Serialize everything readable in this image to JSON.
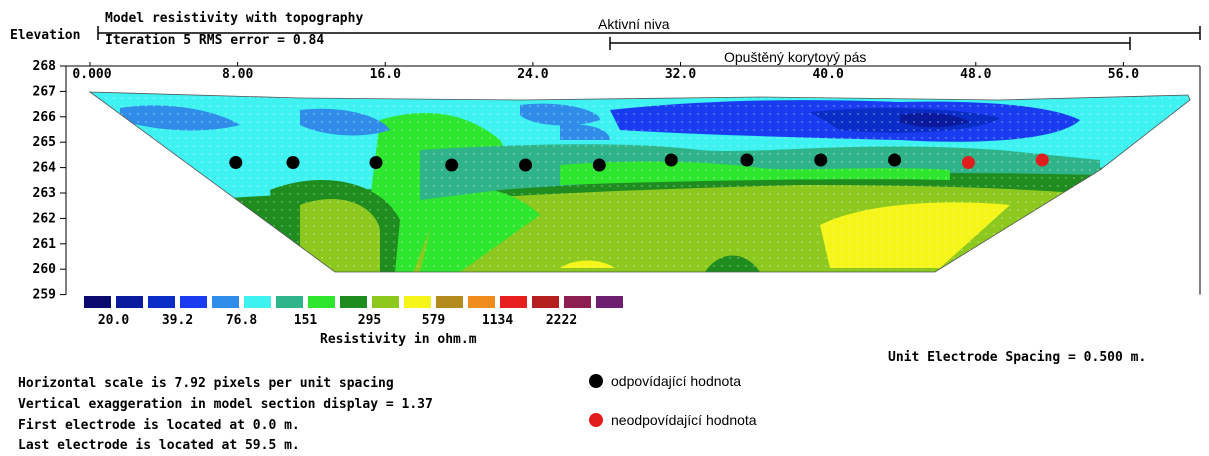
{
  "header": {
    "title": "Model resistivity with topography",
    "iteration": "Iteration 5 RMS error = 0.84",
    "elevation_label": "Elevation"
  },
  "annotations": {
    "aktivni_niva": "Aktivní niva",
    "opusteny_pas": "Opuštěný korytový pás"
  },
  "colors": {
    "scale": [
      "#0a0a6e",
      "#0a1a9c",
      "#0a2dc8",
      "#1a3cf0",
      "#2f8ce8",
      "#3df2f0",
      "#2fb48a",
      "#2ee62e",
      "#1e8c1e",
      "#8cc81e",
      "#f5f51a",
      "#b48c1e",
      "#f08c1e",
      "#e61e1e",
      "#b41e1e",
      "#8c1e50",
      "#6e1e6e"
    ],
    "match_dot": "#000000",
    "mismatch_dot": "#e01e1e"
  },
  "chart_data": {
    "type": "heatmap",
    "title": "Model resistivity with topography",
    "x_ticks": [
      "0.000",
      "8.00",
      "16.0",
      "24.0",
      "32.0",
      "40.0",
      "48.0",
      "56.0"
    ],
    "x_tick_values": [
      0,
      8,
      16,
      24,
      32,
      40,
      48,
      56
    ],
    "y_ticks": [
      "268",
      "267",
      "266",
      "265",
      "264",
      "263",
      "262",
      "261",
      "260",
      "259"
    ],
    "y_tick_values": [
      268,
      267,
      266,
      265,
      264,
      263,
      262,
      261,
      260,
      259
    ],
    "xlim": [
      0,
      59.5
    ],
    "ylim": [
      259,
      268
    ],
    "colorbar_labels": [
      "20.0",
      "39.2",
      "76.8",
      "151",
      "295",
      "579",
      "1134",
      "2222"
    ],
    "colorbar_label": "Resistivity in ohm.m",
    "points_match": [
      {
        "x": 7.9,
        "y": 264.2
      },
      {
        "x": 11.0,
        "y": 264.2
      },
      {
        "x": 15.5,
        "y": 264.2
      },
      {
        "x": 19.6,
        "y": 264.1
      },
      {
        "x": 23.6,
        "y": 264.1
      },
      {
        "x": 27.6,
        "y": 264.1
      },
      {
        "x": 31.5,
        "y": 264.3
      },
      {
        "x": 35.6,
        "y": 264.3
      },
      {
        "x": 39.6,
        "y": 264.3
      },
      {
        "x": 43.6,
        "y": 264.3
      }
    ],
    "points_mismatch": [
      {
        "x": 47.6,
        "y": 264.2
      },
      {
        "x": 51.6,
        "y": 264.3
      }
    ]
  },
  "legend": {
    "match": "odpovídající hodnota",
    "mismatch": "neodpovídající hodnota"
  },
  "footer": {
    "line1": "Horizontal scale is 7.92 pixels per unit spacing",
    "line2": "Vertical exaggeration in model section display = 1.37",
    "line3": "First electrode is located at 0.0  m.",
    "line4": "Last electrode is located at 59.5 m.",
    "spacing": "Unit Electrode Spacing = 0.500 m."
  }
}
